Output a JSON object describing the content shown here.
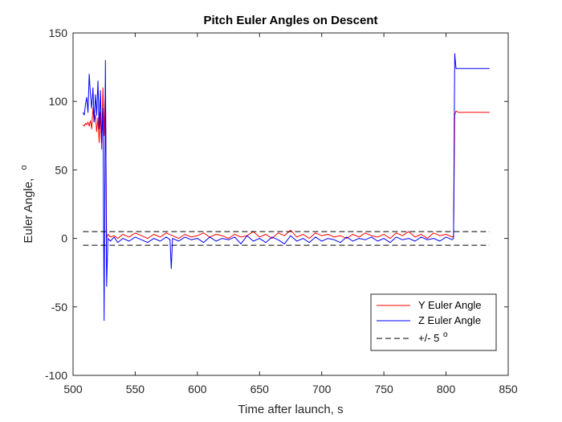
{
  "chart_data": {
    "type": "line",
    "title": "Pitch Euler Angles on Descent",
    "xlabel": "Time after launch, s",
    "ylabel": "Euler Angle,",
    "ylabel_superscript": "o",
    "xlim": [
      500,
      850
    ],
    "ylim": [
      -100,
      150
    ],
    "xticks": [
      "500",
      "550",
      "600",
      "650",
      "700",
      "750",
      "800",
      "850"
    ],
    "yticks": [
      "-100",
      "-50",
      "0",
      "50",
      "100",
      "150"
    ],
    "grid": false,
    "legend_position": "bottom-right",
    "series": [
      {
        "name": "Y Euler Angle",
        "color": "#ff0000",
        "points": [
          [
            508,
            83
          ],
          [
            509,
            82
          ],
          [
            510,
            84
          ],
          [
            511,
            83
          ],
          [
            512,
            85
          ],
          [
            513,
            82
          ],
          [
            514,
            86
          ],
          [
            515,
            80
          ],
          [
            516,
            95
          ],
          [
            517,
            85
          ],
          [
            518,
            90
          ],
          [
            519,
            78
          ],
          [
            520,
            88
          ],
          [
            521,
            70
          ],
          [
            522,
            92
          ],
          [
            523,
            65
          ],
          [
            524,
            110
          ],
          [
            525,
            75
          ],
          [
            526,
            112
          ],
          [
            527,
            0
          ],
          [
            528,
            3
          ],
          [
            530,
            1
          ],
          [
            533,
            2
          ],
          [
            536,
            0
          ],
          [
            540,
            3
          ],
          [
            545,
            1
          ],
          [
            550,
            4
          ],
          [
            555,
            2
          ],
          [
            560,
            0
          ],
          [
            565,
            3
          ],
          [
            570,
            1
          ],
          [
            575,
            4
          ],
          [
            580,
            2
          ],
          [
            585,
            0
          ],
          [
            590,
            3
          ],
          [
            595,
            1
          ],
          [
            600,
            2
          ],
          [
            605,
            4
          ],
          [
            610,
            1
          ],
          [
            615,
            3
          ],
          [
            620,
            2
          ],
          [
            625,
            0
          ],
          [
            630,
            3
          ],
          [
            635,
            1
          ],
          [
            640,
            2
          ],
          [
            645,
            5
          ],
          [
            650,
            1
          ],
          [
            655,
            3
          ],
          [
            660,
            0
          ],
          [
            665,
            4
          ],
          [
            670,
            2
          ],
          [
            675,
            6
          ],
          [
            680,
            1
          ],
          [
            685,
            3
          ],
          [
            690,
            0
          ],
          [
            695,
            4
          ],
          [
            700,
            2
          ],
          [
            705,
            3
          ],
          [
            710,
            1
          ],
          [
            715,
            2
          ],
          [
            720,
            0
          ],
          [
            725,
            3
          ],
          [
            730,
            1
          ],
          [
            735,
            4
          ],
          [
            740,
            2
          ],
          [
            745,
            1
          ],
          [
            750,
            3
          ],
          [
            755,
            0
          ],
          [
            760,
            4
          ],
          [
            765,
            2
          ],
          [
            770,
            5
          ],
          [
            775,
            1
          ],
          [
            780,
            3
          ],
          [
            785,
            0
          ],
          [
            790,
            4
          ],
          [
            795,
            2
          ],
          [
            800,
            3
          ],
          [
            805,
            1
          ],
          [
            806,
            2
          ],
          [
            807,
            90
          ],
          [
            808,
            93
          ],
          [
            810,
            92
          ],
          [
            815,
            92
          ],
          [
            820,
            92
          ],
          [
            825,
            92
          ],
          [
            830,
            92
          ],
          [
            835,
            92
          ]
        ]
      },
      {
        "name": "Z Euler Angle",
        "color": "#0000ff",
        "points": [
          [
            508,
            92
          ],
          [
            509,
            90
          ],
          [
            510,
            98
          ],
          [
            511,
            103
          ],
          [
            512,
            92
          ],
          [
            513,
            120
          ],
          [
            514,
            105
          ],
          [
            515,
            95
          ],
          [
            516,
            110
          ],
          [
            517,
            85
          ],
          [
            518,
            105
          ],
          [
            519,
            90
          ],
          [
            520,
            115
          ],
          [
            521,
            80
          ],
          [
            522,
            108
          ],
          [
            523,
            70
          ],
          [
            524,
            95
          ],
          [
            525,
            -60
          ],
          [
            526,
            130
          ],
          [
            527,
            -35
          ],
          [
            528,
            0
          ],
          [
            530,
            -2
          ],
          [
            533,
            1
          ],
          [
            536,
            -3
          ],
          [
            540,
            0
          ],
          [
            545,
            -2
          ],
          [
            550,
            1
          ],
          [
            555,
            -1
          ],
          [
            560,
            -3
          ],
          [
            565,
            0
          ],
          [
            570,
            -2
          ],
          [
            575,
            1
          ],
          [
            578,
            -1
          ],
          [
            579,
            -22
          ],
          [
            580,
            0
          ],
          [
            585,
            -2
          ],
          [
            590,
            1
          ],
          [
            595,
            -1
          ],
          [
            600,
            0
          ],
          [
            605,
            -3
          ],
          [
            610,
            1
          ],
          [
            615,
            -2
          ],
          [
            620,
            0
          ],
          [
            625,
            -1
          ],
          [
            630,
            1
          ],
          [
            635,
            -4
          ],
          [
            640,
            2
          ],
          [
            645,
            -2
          ],
          [
            650,
            0
          ],
          [
            655,
            -3
          ],
          [
            660,
            1
          ],
          [
            665,
            -1
          ],
          [
            670,
            -4
          ],
          [
            675,
            2
          ],
          [
            680,
            -2
          ],
          [
            685,
            0
          ],
          [
            690,
            -3
          ],
          [
            695,
            1
          ],
          [
            700,
            -2
          ],
          [
            705,
            0
          ],
          [
            710,
            -1
          ],
          [
            715,
            -3
          ],
          [
            720,
            1
          ],
          [
            725,
            -2
          ],
          [
            730,
            0
          ],
          [
            735,
            -1
          ],
          [
            740,
            1
          ],
          [
            745,
            -2
          ],
          [
            750,
            0
          ],
          [
            755,
            -3
          ],
          [
            760,
            1
          ],
          [
            765,
            -1
          ],
          [
            770,
            0
          ],
          [
            775,
            -2
          ],
          [
            780,
            1
          ],
          [
            785,
            -1
          ],
          [
            790,
            0
          ],
          [
            795,
            -2
          ],
          [
            800,
            1
          ],
          [
            805,
            -1
          ],
          [
            806,
            0
          ],
          [
            807,
            135
          ],
          [
            808,
            124
          ],
          [
            810,
            124
          ],
          [
            815,
            124
          ],
          [
            820,
            124
          ],
          [
            825,
            124
          ],
          [
            830,
            124
          ],
          [
            835,
            124
          ]
        ]
      },
      {
        "name": "+/- 5",
        "name_superscript": "o",
        "color": "#000000",
        "dashed": true,
        "x_range": [
          508,
          835
        ],
        "levels": [
          5,
          -5
        ]
      }
    ]
  }
}
